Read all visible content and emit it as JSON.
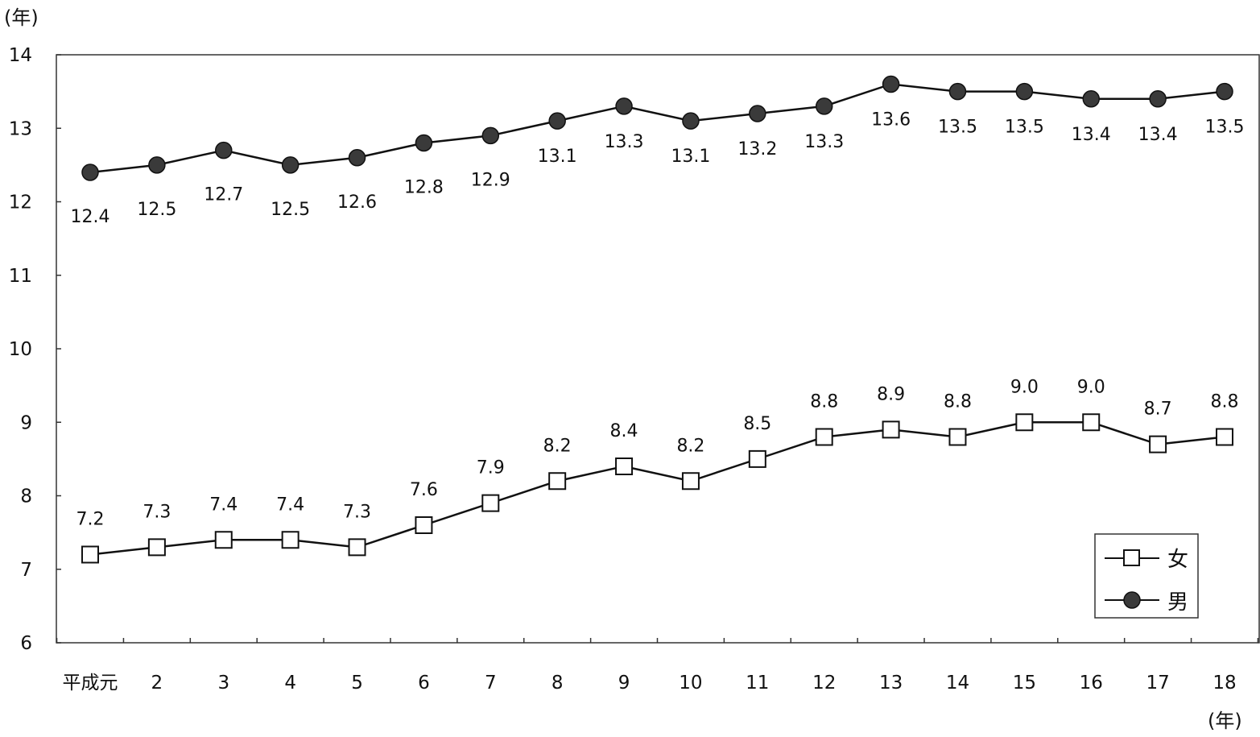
{
  "chart_data": {
    "type": "line",
    "y_unit": "(年)",
    "x_unit": "(年)",
    "categories": [
      "平成元",
      "2",
      "3",
      "4",
      "5",
      "6",
      "7",
      "8",
      "9",
      "10",
      "11",
      "12",
      "13",
      "14",
      "15",
      "16",
      "17",
      "18"
    ],
    "ylim": [
      6,
      14
    ],
    "yticks": [
      6,
      7,
      8,
      9,
      10,
      11,
      12,
      13,
      14
    ],
    "grid": false,
    "legend_position": "bottom-right",
    "series": [
      {
        "name": "女",
        "marker": "square-open",
        "values": [
          7.2,
          7.3,
          7.4,
          7.4,
          7.3,
          7.6,
          7.9,
          8.2,
          8.4,
          8.2,
          8.5,
          8.8,
          8.9,
          8.8,
          9.0,
          9.0,
          8.7,
          8.8
        ],
        "labels": [
          "7.2",
          "7.3",
          "7.4",
          "7.4",
          "7.3",
          "7.6",
          "7.9",
          "8.2",
          "8.4",
          "8.2",
          "8.5",
          "8.8",
          "8.9",
          "8.8",
          "9.0",
          "9.0",
          "8.7",
          "8.8"
        ]
      },
      {
        "name": "男",
        "marker": "circle-filled",
        "values": [
          12.4,
          12.5,
          12.7,
          12.5,
          12.6,
          12.8,
          12.9,
          13.1,
          13.3,
          13.1,
          13.2,
          13.3,
          13.6,
          13.5,
          13.5,
          13.4,
          13.4,
          13.5
        ],
        "labels": [
          "12.4",
          "12.5",
          "12.7",
          "12.5",
          "12.6",
          "12.8",
          "12.9",
          "13.1",
          "13.3",
          "13.1",
          "13.2",
          "13.3",
          "13.6",
          "13.5",
          "13.5",
          "13.4",
          "13.4",
          "13.5"
        ]
      }
    ],
    "colors": {
      "line": "#111111",
      "marker_fill_male": "#3a3a3a",
      "marker_fill_female": "#ffffff"
    }
  }
}
